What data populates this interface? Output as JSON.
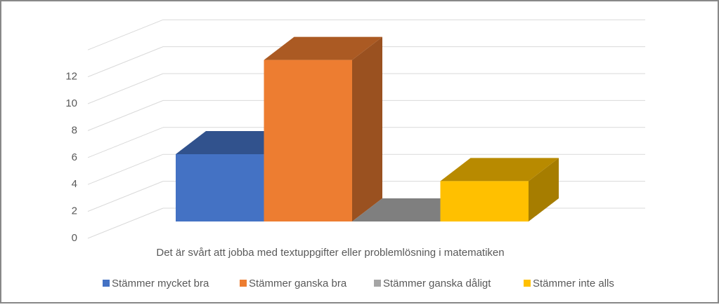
{
  "chart_data": {
    "type": "bar3d",
    "categories": [
      "Det är svårt att jobba med textuppgifter eller problemlösning i matematiken"
    ],
    "series": [
      {
        "name": "Stämmer mycket bra",
        "color": "#4472c4",
        "values": [
          5
        ]
      },
      {
        "name": "Stämmer ganska bra",
        "color": "#ed7d31",
        "values": [
          12
        ]
      },
      {
        "name": "Stämmer ganska dåligt",
        "color": "#a5a5a5",
        "values": [
          0
        ]
      },
      {
        "name": "Stämmer inte alls",
        "color": "#ffc000",
        "values": [
          3
        ]
      }
    ],
    "ylim": [
      0,
      14
    ],
    "yticks": [
      0,
      2,
      4,
      6,
      8,
      10,
      12
    ],
    "grid": true,
    "legend": "bottom"
  }
}
